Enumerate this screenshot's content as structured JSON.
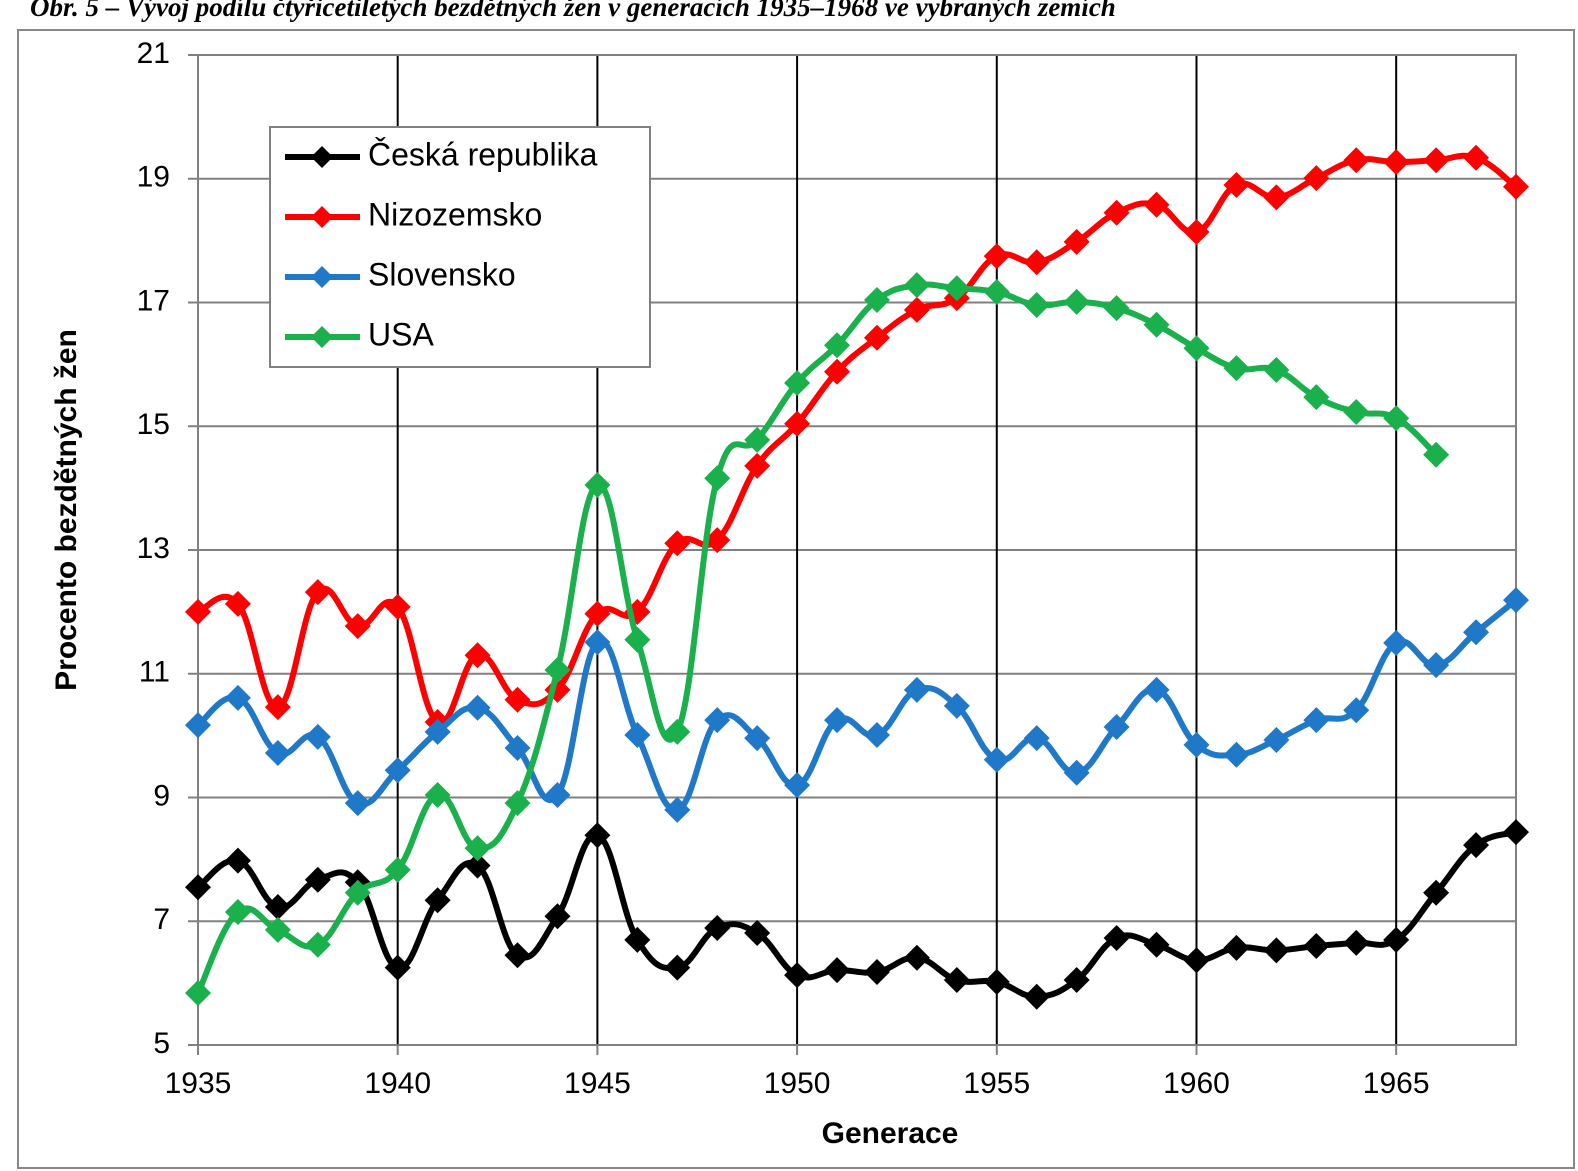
{
  "chart_data": {
    "type": "line",
    "title": "Obr. 5 – Vývoj podílu čtyřicetiletých bezdětných žen v generacích 1935–1968 ve vybraných zemích",
    "x_label": "Generace",
    "y_label": "Procento bezdětných žen",
    "x": [
      1935,
      1936,
      1937,
      1938,
      1939,
      1940,
      1941,
      1942,
      1943,
      1944,
      1945,
      1946,
      1947,
      1948,
      1949,
      1950,
      1951,
      1952,
      1953,
      1954,
      1955,
      1956,
      1957,
      1958,
      1959,
      1960,
      1961,
      1962,
      1963,
      1964,
      1965,
      1966,
      1967,
      1968
    ],
    "xlim": [
      1935,
      1968
    ],
    "xticks": [
      1935,
      1940,
      1945,
      1950,
      1955,
      1960,
      1965
    ],
    "ylim": [
      5,
      21
    ],
    "yticks": [
      5,
      7,
      9,
      11,
      13,
      15,
      17,
      19,
      21
    ],
    "grid": true,
    "legend": "upper left",
    "series": [
      {
        "name": "Česká republika",
        "color": "#000000",
        "values": [
          7.55,
          7.98,
          7.23,
          7.67,
          7.63,
          6.25,
          7.34,
          7.9,
          6.45,
          7.08,
          8.39,
          6.7,
          6.25,
          6.89,
          6.81,
          6.13,
          6.21,
          6.18,
          6.41,
          6.05,
          6.02,
          5.78,
          6.05,
          6.73,
          6.62,
          6.37,
          6.57,
          6.53,
          6.6,
          6.65,
          6.7,
          7.46,
          8.23,
          8.44
        ]
      },
      {
        "name": "Nizozemsko",
        "color": "#ff0000",
        "values": [
          12.0,
          12.13,
          10.46,
          12.32,
          11.77,
          12.08,
          10.22,
          11.3,
          10.58,
          10.74,
          11.97,
          12.0,
          13.11,
          13.16,
          14.36,
          15.04,
          15.88,
          16.43,
          16.88,
          17.07,
          17.75,
          17.65,
          17.98,
          18.45,
          18.58,
          18.14,
          18.9,
          18.7,
          19.01,
          19.3,
          19.27,
          19.3,
          19.34,
          18.87
        ]
      },
      {
        "name": "Slovensko",
        "color": "#1f78c8",
        "values": [
          10.17,
          10.61,
          9.72,
          9.98,
          8.91,
          9.44,
          10.06,
          10.45,
          9.8,
          9.04,
          11.51,
          10.01,
          8.8,
          10.25,
          9.96,
          9.2,
          10.25,
          10.01,
          10.74,
          10.48,
          9.61,
          9.96,
          9.4,
          10.14,
          10.74,
          9.85,
          9.69,
          9.93,
          10.25,
          10.41,
          11.5,
          11.14,
          11.67,
          12.19
        ]
      },
      {
        "name": "USA",
        "color": "#1ab04c",
        "values": [
          5.84,
          7.15,
          6.86,
          6.62,
          7.46,
          7.83,
          9.04,
          8.18,
          8.91,
          11.06,
          14.05,
          11.55,
          10.06,
          14.16,
          14.78,
          15.7,
          16.31,
          17.04,
          17.28,
          17.23,
          17.17,
          16.96,
          17.01,
          16.91,
          16.64,
          16.26,
          15.94,
          15.91,
          15.47,
          15.23,
          15.13,
          14.54,
          null,
          null
        ]
      }
    ]
  }
}
